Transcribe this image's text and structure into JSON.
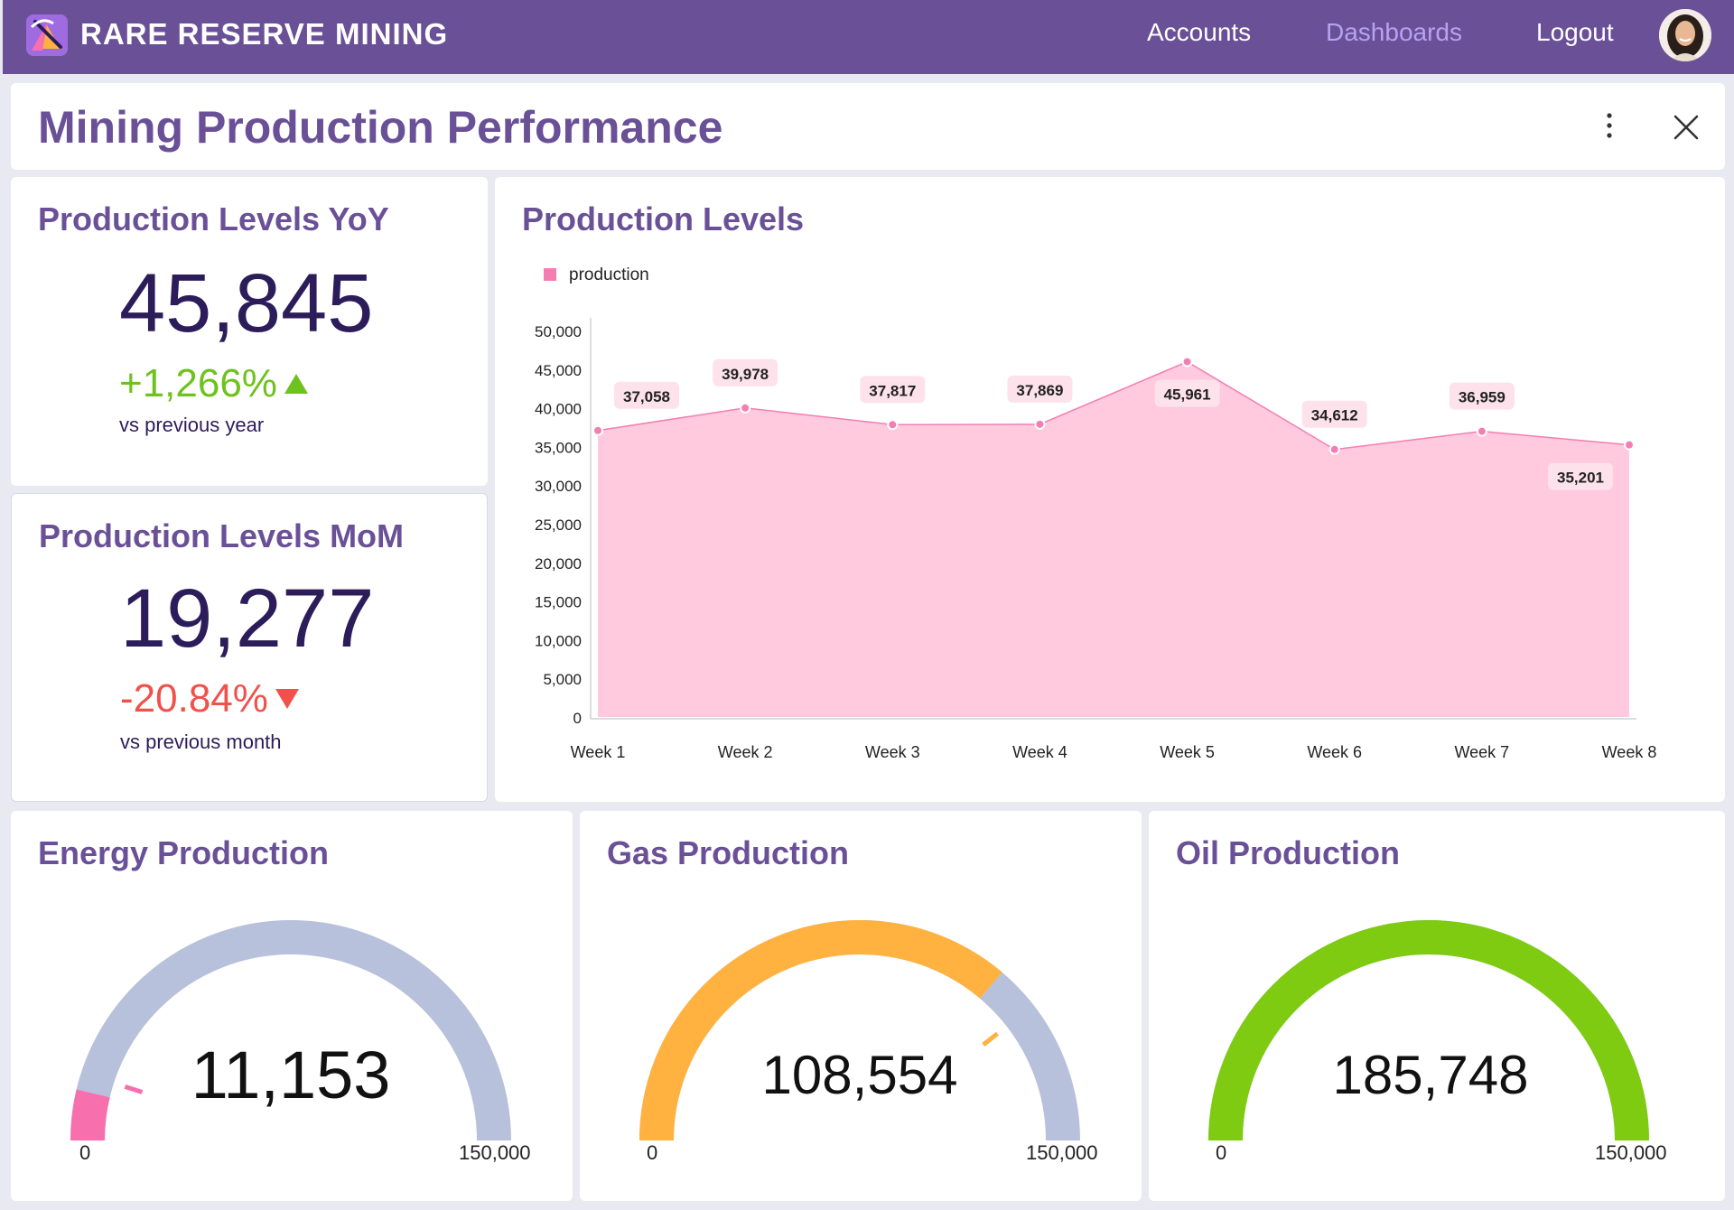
{
  "app": {
    "brand": "RARE RESERVE MINING",
    "nav": [
      "Accounts",
      "Dashboards",
      "Logout"
    ],
    "active_nav": "Dashboards"
  },
  "page": {
    "title": "Mining Production Performance"
  },
  "kpi_yoy": {
    "title": "Production Levels YoY",
    "value": "45,845",
    "delta": "+1,266%",
    "delta_note": "vs previous year",
    "trend": "up"
  },
  "kpi_mom": {
    "title": "Production Levels MoM",
    "value": "19,277",
    "delta": "-20.84%",
    "delta_note": "vs previous month",
    "trend": "down"
  },
  "chart_data": {
    "type": "area",
    "title": "Production Levels",
    "legend": [
      "production"
    ],
    "categories": [
      "Week 1",
      "Week 2",
      "Week 3",
      "Week 4",
      "Week 5",
      "Week 6",
      "Week 7",
      "Week 8"
    ],
    "series": [
      {
        "name": "production",
        "values": [
          37058,
          39978,
          37817,
          37869,
          45961,
          34612,
          36959,
          35201
        ]
      }
    ],
    "labels": [
      "37,058",
      "39,978",
      "37,817",
      "37,869",
      "45,961",
      "34,612",
      "36,959",
      "35,201"
    ],
    "y_ticks": [
      "0",
      "5,000",
      "10,000",
      "15,000",
      "20,000",
      "25,000",
      "30,000",
      "35,000",
      "40,000",
      "45,000",
      "50,000"
    ],
    "ylim": [
      0,
      50000
    ],
    "colors": {
      "fill": "#ffc9de",
      "line": "#f47eb1",
      "label_bg": "#fde2ec"
    }
  },
  "gauges": [
    {
      "title": "Energy Production",
      "value": 11153,
      "value_label": "11,153",
      "min": 0,
      "max": 150000,
      "min_label": "0",
      "max_label": "150,000",
      "color": "#f86fae",
      "target_fraction": 0.1
    },
    {
      "title": "Gas Production",
      "value": 108554,
      "value_label": "108,554",
      "min": 0,
      "max": 150000,
      "min_label": "0",
      "max_label": "150,000",
      "color": "#ffb23f",
      "target_fraction": 0.79
    },
    {
      "title": "Oil Production",
      "value": 185748,
      "value_label": "185,748",
      "min": 0,
      "max": 150000,
      "min_label": "0",
      "max_label": "150,000",
      "color": "#7ecb12",
      "target_fraction": null
    }
  ],
  "colors": {
    "header": "#6a5097",
    "title": "#6a5097",
    "gauge_track": "#b8c1dc"
  }
}
